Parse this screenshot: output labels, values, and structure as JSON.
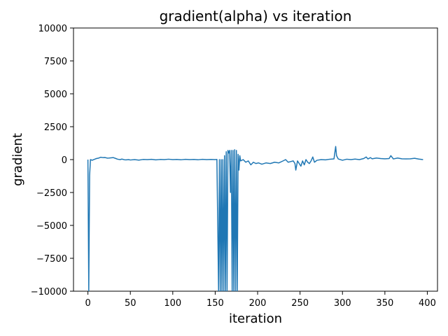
{
  "chart_data": {
    "type": "line",
    "title": "gradient(alpha) vs iteration",
    "xlabel": "iteration",
    "ylabel": "gradient",
    "xlim": [
      -17,
      412
    ],
    "ylim": [
      -10000,
      10000
    ],
    "x_ticks": [
      0,
      50,
      100,
      150,
      200,
      250,
      300,
      350,
      400
    ],
    "y_ticks": [
      10000,
      7500,
      5000,
      2500,
      0,
      -2500,
      -5000,
      -7500,
      -10000
    ],
    "x_tick_labels": [
      "0",
      "50",
      "100",
      "150",
      "200",
      "250",
      "300",
      "350",
      "400"
    ],
    "y_tick_labels": [
      "10000",
      "7500",
      "5000",
      "2500",
      "0",
      "−2500",
      "−5000",
      "−7500",
      "−10000"
    ],
    "grid": false,
    "legend": "none",
    "series": [
      {
        "color": "#1f77b4",
        "points": [
          [
            0,
            0
          ],
          [
            1,
            -10000
          ],
          [
            2,
            -1200
          ],
          [
            3,
            0
          ],
          [
            5,
            -50
          ],
          [
            8,
            30
          ],
          [
            10,
            80
          ],
          [
            13,
            120
          ],
          [
            15,
            180
          ],
          [
            18,
            150
          ],
          [
            20,
            160
          ],
          [
            23,
            110
          ],
          [
            25,
            120
          ],
          [
            28,
            140
          ],
          [
            30,
            150
          ],
          [
            33,
            80
          ],
          [
            35,
            30
          ],
          [
            38,
            0
          ],
          [
            40,
            40
          ],
          [
            43,
            -10
          ],
          [
            45,
            -20
          ],
          [
            48,
            0
          ],
          [
            50,
            -30
          ],
          [
            55,
            0
          ],
          [
            60,
            -40
          ],
          [
            65,
            10
          ],
          [
            70,
            0
          ],
          [
            75,
            20
          ],
          [
            80,
            -20
          ],
          [
            85,
            10
          ],
          [
            90,
            0
          ],
          [
            95,
            30
          ],
          [
            100,
            0
          ],
          [
            105,
            10
          ],
          [
            110,
            -10
          ],
          [
            115,
            20
          ],
          [
            120,
            0
          ],
          [
            125,
            10
          ],
          [
            130,
            -10
          ],
          [
            135,
            20
          ],
          [
            140,
            0
          ],
          [
            145,
            10
          ],
          [
            150,
            0
          ],
          [
            152,
            10
          ],
          [
            154,
            -10000
          ],
          [
            155,
            0
          ],
          [
            156,
            -10000
          ],
          [
            157,
            0
          ],
          [
            158,
            -10000
          ],
          [
            159,
            0
          ],
          [
            160,
            -10000
          ],
          [
            161,
            300
          ],
          [
            162,
            -10000
          ],
          [
            163,
            600
          ],
          [
            164,
            -10000
          ],
          [
            165,
            700
          ],
          [
            166,
            500
          ],
          [
            167,
            700
          ],
          [
            168,
            -2500
          ],
          [
            169,
            700
          ],
          [
            170,
            -10000
          ],
          [
            171,
            700
          ],
          [
            172,
            -10000
          ],
          [
            173,
            750
          ],
          [
            174,
            -10000
          ],
          [
            175,
            700
          ],
          [
            176,
            -10000
          ],
          [
            177,
            400
          ],
          [
            178,
            -800
          ],
          [
            179,
            300
          ],
          [
            180,
            -100
          ],
          [
            183,
            0
          ],
          [
            186,
            -200
          ],
          [
            189,
            -100
          ],
          [
            192,
            -400
          ],
          [
            195,
            -200
          ],
          [
            198,
            -300
          ],
          [
            201,
            -250
          ],
          [
            205,
            -350
          ],
          [
            210,
            -250
          ],
          [
            215,
            -300
          ],
          [
            220,
            -200
          ],
          [
            225,
            -250
          ],
          [
            230,
            -100
          ],
          [
            233,
            0
          ],
          [
            236,
            -200
          ],
          [
            239,
            -150
          ],
          [
            242,
            -100
          ],
          [
            244,
            -300
          ],
          [
            245,
            -800
          ],
          [
            247,
            -100
          ],
          [
            249,
            -300
          ],
          [
            251,
            -500
          ],
          [
            253,
            -100
          ],
          [
            255,
            -400
          ],
          [
            257,
            0
          ],
          [
            259,
            -200
          ],
          [
            261,
            -300
          ],
          [
            263,
            -100
          ],
          [
            265,
            200
          ],
          [
            267,
            -200
          ],
          [
            270,
            -50
          ],
          [
            275,
            0
          ],
          [
            280,
            -20
          ],
          [
            285,
            30
          ],
          [
            290,
            50
          ],
          [
            292,
            1000
          ],
          [
            293,
            300
          ],
          [
            295,
            50
          ],
          [
            300,
            -50
          ],
          [
            305,
            30
          ],
          [
            310,
            0
          ],
          [
            315,
            40
          ],
          [
            320,
            0
          ],
          [
            325,
            80
          ],
          [
            328,
            200
          ],
          [
            330,
            50
          ],
          [
            333,
            150
          ],
          [
            335,
            60
          ],
          [
            340,
            120
          ],
          [
            345,
            80
          ],
          [
            350,
            60
          ],
          [
            355,
            80
          ],
          [
            357,
            300
          ],
          [
            360,
            50
          ],
          [
            365,
            120
          ],
          [
            370,
            60
          ],
          [
            375,
            50
          ],
          [
            380,
            60
          ],
          [
            385,
            100
          ],
          [
            390,
            40
          ],
          [
            395,
            0
          ]
        ]
      }
    ]
  }
}
